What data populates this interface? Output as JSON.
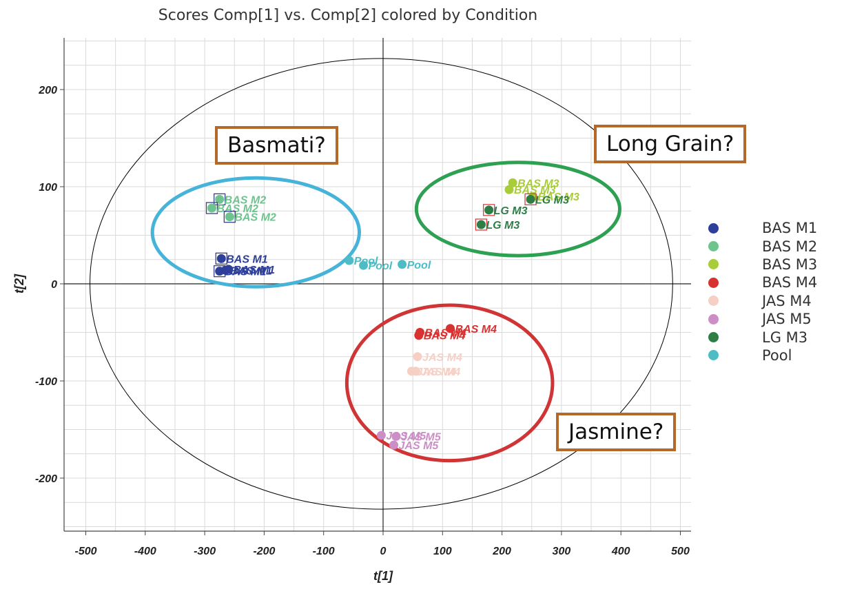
{
  "chart_data": {
    "type": "scatter",
    "title": "Scores Comp[1] vs. Comp[2] colored by Condition",
    "xlabel": "t[1]",
    "ylabel": "t[2]",
    "xlim": [
      -540,
      520
    ],
    "ylim": [
      -255,
      250
    ],
    "xticks": [
      -500,
      -400,
      -300,
      -200,
      -100,
      0,
      100,
      200,
      300,
      400,
      500
    ],
    "yticks": [
      -200,
      -100,
      0,
      100,
      200
    ],
    "grid": true,
    "legend_position": "right",
    "ellipse": {
      "center": [
        -3,
        0
      ],
      "radius_x": 490,
      "radius_y": 232,
      "color": "#000000"
    },
    "series": [
      {
        "name": "BAS M1",
        "color": "#2e3f9a",
        "points": [
          {
            "x": -272,
            "y": 26,
            "label": "BAS M1",
            "boxed": true
          },
          {
            "x": -275,
            "y": 13,
            "label": "BAS M1",
            "boxed": true
          },
          {
            "x": -260,
            "y": 15,
            "label": "BAS M1",
            "boxed": false
          },
          {
            "x": -265,
            "y": 14,
            "label": "BAS M1",
            "boxed": false
          }
        ]
      },
      {
        "name": "BAS M2",
        "color": "#6dc48e",
        "points": [
          {
            "x": -275,
            "y": 87,
            "label": "BAS M2",
            "boxed": true
          },
          {
            "x": -288,
            "y": 78,
            "label": "BAS M2",
            "boxed": true
          },
          {
            "x": -258,
            "y": 69,
            "label": "BAS M2",
            "boxed": true
          }
        ]
      },
      {
        "name": "BAS M3",
        "color": "#a8cc3a",
        "points": [
          {
            "x": 218,
            "y": 104,
            "label": "BAS M3",
            "boxed": false
          },
          {
            "x": 212,
            "y": 97,
            "label": "BAS M3",
            "boxed": false
          },
          {
            "x": 252,
            "y": 90,
            "label": "BAS M3",
            "boxed": false
          }
        ]
      },
      {
        "name": "BAS M4",
        "color": "#d93030",
        "points": [
          {
            "x": 113,
            "y": -46,
            "label": "BAS M4",
            "boxed": false
          },
          {
            "x": 62,
            "y": -50,
            "label": "BAS M4",
            "boxed": false
          },
          {
            "x": 60,
            "y": -53,
            "label": "BAS M4",
            "boxed": false
          }
        ]
      },
      {
        "name": "JAS M4",
        "color": "#f6d0c4",
        "points": [
          {
            "x": 58,
            "y": -75,
            "label": "JAS M4",
            "boxed": false
          },
          {
            "x": 48,
            "y": -90,
            "label": "JAS M4",
            "boxed": false
          },
          {
            "x": 55,
            "y": -90,
            "label": "JAS M4",
            "boxed": false
          }
        ]
      },
      {
        "name": "JAS M5",
        "color": "#cc8ec6",
        "points": [
          {
            "x": -3,
            "y": -156,
            "label": "JAS M5",
            "boxed": false
          },
          {
            "x": 22,
            "y": -157,
            "label": "JAS M5",
            "boxed": false
          },
          {
            "x": 18,
            "y": -166,
            "label": "JAS M5",
            "boxed": false
          }
        ]
      },
      {
        "name": "LG M3",
        "color": "#2e7d46",
        "points": [
          {
            "x": 178,
            "y": 76,
            "label": "LG M3",
            "boxed": true
          },
          {
            "x": 165,
            "y": 61,
            "label": "LG M3",
            "boxed": true
          },
          {
            "x": 248,
            "y": 87,
            "label": "LG M3",
            "boxed": true
          }
        ]
      },
      {
        "name": "Pool",
        "color": "#4dbcc4",
        "points": [
          {
            "x": -57,
            "y": 24,
            "label": "Pool",
            "boxed": false
          },
          {
            "x": -33,
            "y": 19,
            "label": "Pool",
            "boxed": false
          },
          {
            "x": 32,
            "y": 20,
            "label": "Pool",
            "boxed": false
          }
        ]
      }
    ],
    "group_annotations": [
      {
        "label": "Basmati?",
        "ellipse_color": "#45b4d8",
        "center": [
          -214,
          53
        ],
        "radius_x": 174,
        "radius_y": 56
      },
      {
        "label": "Long Grain?",
        "ellipse_color": "#2ea052",
        "center": [
          227,
          77
        ],
        "radius_x": 171,
        "radius_y": 48
      },
      {
        "label": "Jasmine?",
        "ellipse_color": "#d03434",
        "center": [
          112,
          -102
        ],
        "radius_x": 173,
        "radius_y": 80
      }
    ]
  }
}
